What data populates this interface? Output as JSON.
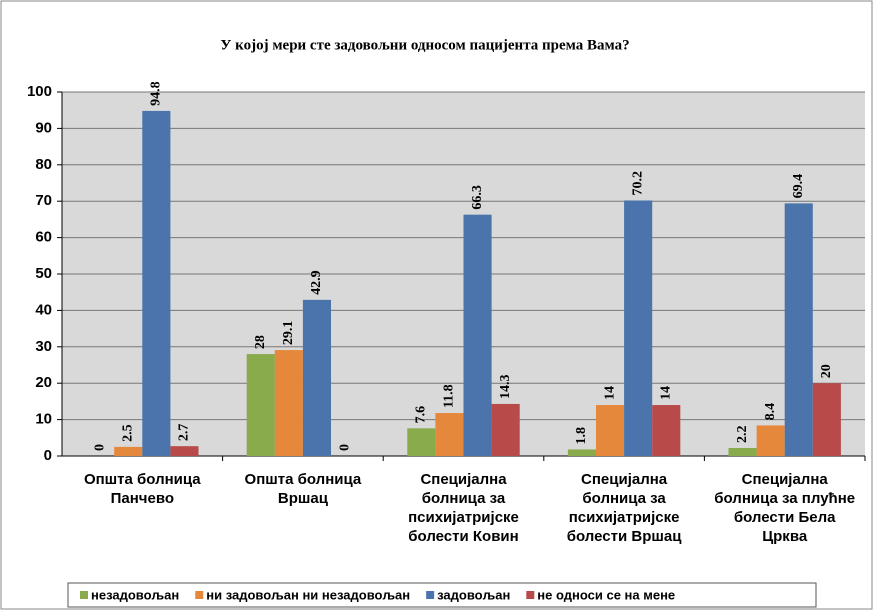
{
  "chart_data": {
    "type": "bar",
    "title": "У којој мери сте задовољни односом пацијента према Вама?",
    "categories": [
      "Општа болница Панчево",
      "Општа болница Вршац",
      "Специјална болница за психијатријске болести Ковин",
      "Специјална болница за психијатријске болести Вршац",
      "Специјална болница за плућне болести Бела Црква"
    ],
    "series": [
      {
        "name": "незадовољан",
        "color": "#8aab4b",
        "values": [
          0,
          28,
          7.6,
          1.8,
          2.2
        ]
      },
      {
        "name": "ни задовољан ни незадовољан",
        "color": "#e6883b",
        "values": [
          2.5,
          29.1,
          11.8,
          14,
          8.4
        ]
      },
      {
        "name": "задовољан",
        "color": "#4a74ab",
        "values": [
          94.8,
          42.9,
          66.3,
          70.2,
          69.4
        ]
      },
      {
        "name": "не односи се на мене",
        "color": "#b84a4a",
        "values": [
          2.7,
          0,
          14.3,
          14,
          20
        ]
      }
    ],
    "ylim": [
      0,
      100
    ],
    "yticks": [
      0,
      10,
      20,
      30,
      40,
      50,
      60,
      70,
      80,
      90,
      100
    ],
    "grid": true,
    "legend": "bottom"
  }
}
